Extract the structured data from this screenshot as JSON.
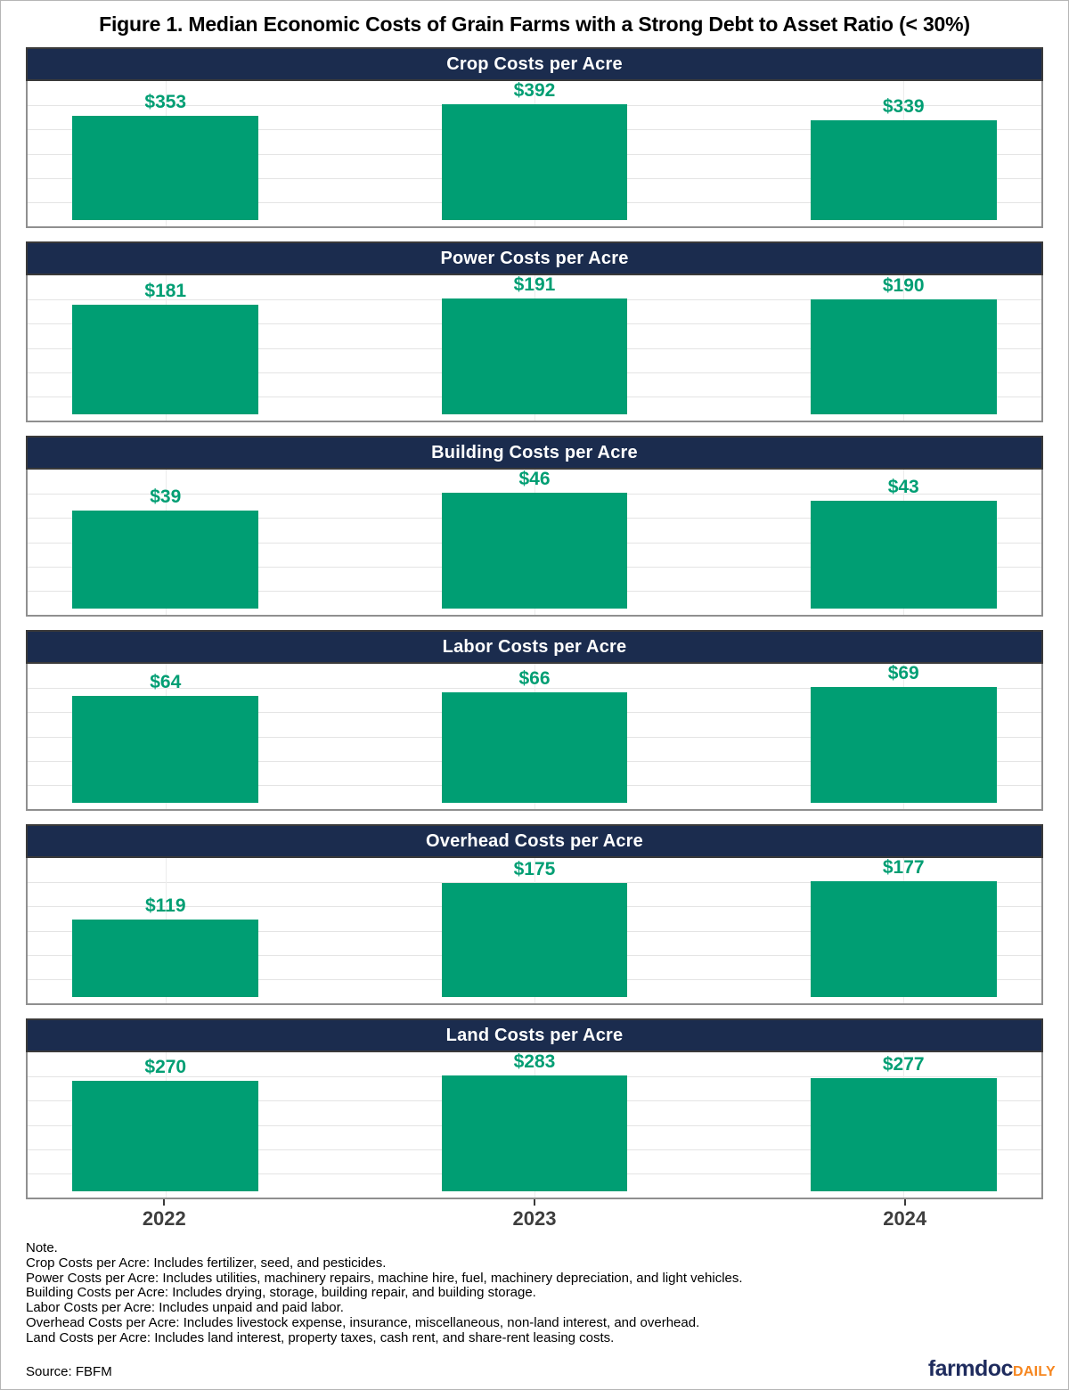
{
  "figure": {
    "title": "Figure 1. Median Economic Costs of Grain Farms with a Strong Debt to Asset Ratio (< 30%)",
    "note_heading": "Note.",
    "notes": [
      "Crop Costs per Acre: Includes fertilizer, seed, and pesticides.",
      "Power Costs per Acre: Includes utilities, machinery repairs, machine hire, fuel, machinery depreciation, and light vehicles.",
      "Building Costs per Acre: Includes drying, storage, building repair, and building storage.",
      "Labor Costs per Acre: Includes unpaid and paid labor.",
      "Overhead Costs per Acre: Includes livestock expense, insurance, miscellaneous, non-land interest, and overhead.",
      "Land Costs per Acre: Includes land interest, property taxes, cash rent, and share-rent leasing costs."
    ],
    "source": "Source: FBFM",
    "logo": {
      "primary": "farmdoc",
      "secondary": "DAILY"
    }
  },
  "chart_data": {
    "type": "bar",
    "categories": [
      "2022",
      "2023",
      "2024"
    ],
    "panels": [
      {
        "title": "Crop Costs per Acre",
        "values": [
          353,
          392,
          339
        ],
        "value_labels": [
          "$353",
          "$392",
          "$339"
        ]
      },
      {
        "title": "Power Costs per Acre",
        "values": [
          181,
          191,
          190
        ],
        "value_labels": [
          "$181",
          "$191",
          "$190"
        ]
      },
      {
        "title": "Building Costs per Acre",
        "values": [
          39,
          46,
          43
        ],
        "value_labels": [
          "$39",
          "$46",
          "$43"
        ]
      },
      {
        "title": "Labor Costs per Acre",
        "values": [
          64,
          66,
          69
        ],
        "value_labels": [
          "$64",
          "$66",
          "$69"
        ]
      },
      {
        "title": "Overhead Costs per Acre",
        "values": [
          119,
          175,
          177
        ],
        "value_labels": [
          "$119",
          "$175",
          "$177"
        ]
      },
      {
        "title": "Land Costs per Acre",
        "values": [
          270,
          283,
          277
        ],
        "value_labels": [
          "$270",
          "$283",
          "$277"
        ]
      }
    ],
    "xlabel": "",
    "ylabel": "",
    "grid": true,
    "legend": "none",
    "bar_color": "#009E73",
    "label_color": "#009E73",
    "panel_header_bg": "#1B2C4E",
    "panel_header_text_color": "#FFFFFF"
  }
}
